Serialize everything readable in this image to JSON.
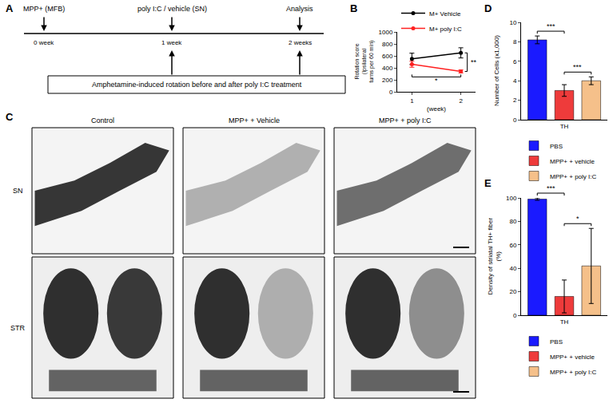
{
  "diagram": {
    "panel": "A",
    "events": [
      {
        "label": "MPP+ (MFB)",
        "time": "0 week"
      },
      {
        "label": "poly I:C / vehicle (SN)",
        "time": "1 week"
      },
      {
        "label": "Analysis",
        "time": "2 weeks"
      }
    ],
    "box": "Amphetamine-induced rotation before and after poly I:C treatment"
  },
  "chart_data": [
    {
      "panel": "B",
      "type": "line",
      "x": [
        1,
        2
      ],
      "xlim": [
        0.7,
        2.3
      ],
      "xticks": [
        1,
        2
      ],
      "xlabel": "(week)",
      "ylabel": "Rotation score (Ipsilateral turns per 60 min)",
      "ylim": [
        0,
        1000
      ],
      "yticks": [
        0,
        200,
        400,
        600,
        800,
        1000
      ],
      "grid": false,
      "legend": "top",
      "series": [
        {
          "name": "M+ Vehicle",
          "color": "#000000",
          "marker": "circle",
          "line_style": "solid",
          "values": [
            550,
            650
          ],
          "error": [
            95,
            85
          ]
        },
        {
          "name": "M+ poly I:C",
          "color": "#ff2020",
          "marker": "circle",
          "line_style": "solid",
          "values": [
            460,
            340
          ],
          "error": [
            50,
            25
          ]
        }
      ],
      "comparisons": [
        {
          "label": "*",
          "series": "M+ poly I:C",
          "x": [
            1,
            2
          ]
        },
        {
          "label": "**",
          "series": [
            "M+ Vehicle",
            "M+ poly I:C"
          ],
          "x": 2
        }
      ]
    },
    {
      "panel": "D",
      "type": "bar",
      "categories": [
        "TH"
      ],
      "ylabel": "Number of Cells (x1,000)",
      "ylim": [
        0,
        10
      ],
      "yticks": [
        0,
        2,
        4,
        6,
        8,
        10
      ],
      "grid": false,
      "legend": "bottom",
      "series": [
        {
          "name": "PBS",
          "color": "#1a1aff",
          "values": [
            8.2
          ],
          "error": [
            0.4
          ]
        },
        {
          "name": "MPP+ + vehicle",
          "color": "#ee3b3b",
          "values": [
            3.0
          ],
          "error": [
            0.6
          ]
        },
        {
          "name": "MPP+ + poly I:C",
          "color": "#f5c08a",
          "values": [
            4.0
          ],
          "error": [
            0.4
          ]
        }
      ],
      "comparisons": [
        {
          "label": "***",
          "series": [
            "PBS",
            "MPP+ + vehicle"
          ]
        },
        {
          "label": "***",
          "series": [
            "MPP+ + vehicle",
            "MPP+ + poly I:C"
          ]
        }
      ]
    },
    {
      "panel": "E",
      "type": "bar",
      "categories": [
        "TH"
      ],
      "ylabel": "Density of striatal TH+ fiber (%)",
      "ylim": [
        0,
        100
      ],
      "yticks": [
        0,
        20,
        40,
        60,
        80,
        100
      ],
      "grid": false,
      "legend": "bottom",
      "series": [
        {
          "name": "PBS",
          "color": "#1a1aff",
          "values": [
            99
          ],
          "error": [
            1
          ]
        },
        {
          "name": "MPP+ + vehicle",
          "color": "#ee3b3b",
          "values": [
            16
          ],
          "error": [
            14
          ]
        },
        {
          "name": "MPP+ + poly I:C",
          "color": "#f5c08a",
          "values": [
            42
          ],
          "error": [
            32
          ]
        }
      ],
      "comparisons": [
        {
          "label": "***",
          "series": [
            "PBS",
            "MPP+ + vehicle"
          ]
        },
        {
          "label": "*",
          "series": [
            "MPP+ + vehicle",
            "MPP+ + poly I:C"
          ]
        }
      ]
    }
  ],
  "images": {
    "panel": "C",
    "columns": [
      "Control",
      "MPP+ + Vehicle",
      "MPP+ + poly I:C"
    ],
    "rows": [
      "SN",
      "STR"
    ]
  }
}
